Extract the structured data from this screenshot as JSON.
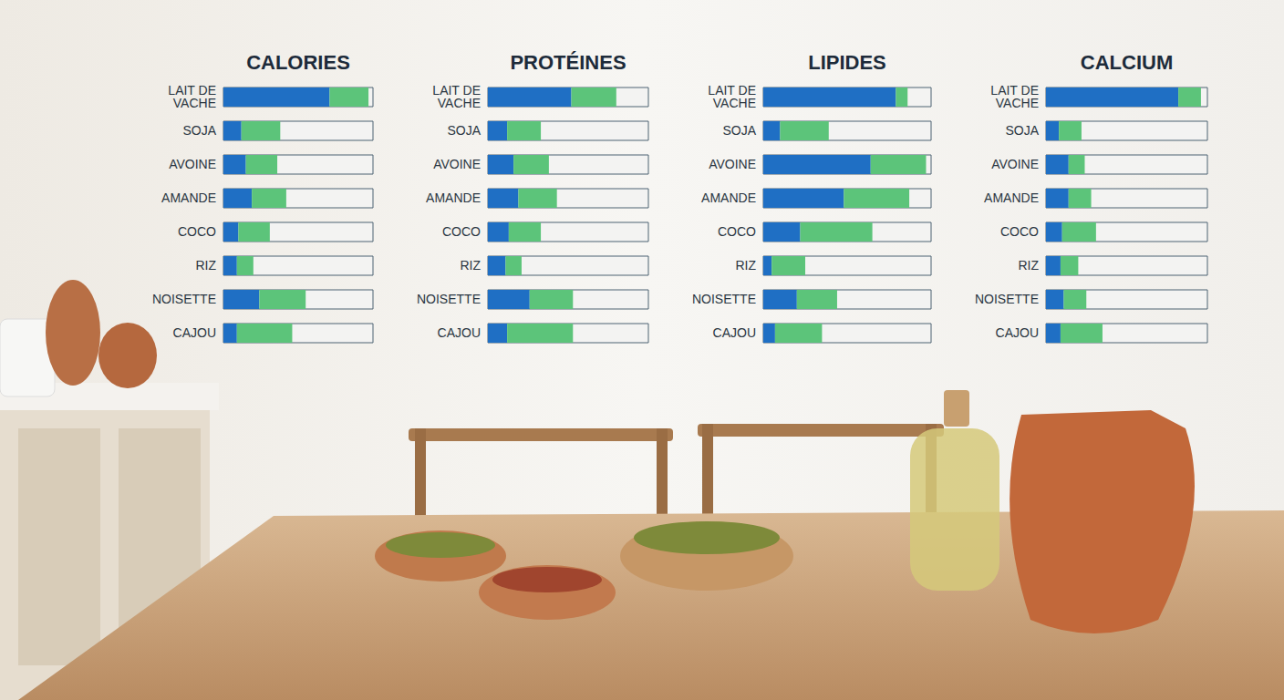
{
  "chart_data": [
    {
      "type": "bar",
      "title": "CALORIES",
      "orientation": "horizontal",
      "stacked": true,
      "tick_labels": "y",
      "xlim": [
        0,
        100
      ],
      "categories": [
        "LAIT DE VACHE",
        "SOJA",
        "AVOINE",
        "AMANDE",
        "COCO",
        "RIZ",
        "NOISETTE",
        "CAJOU"
      ],
      "series": [
        {
          "color": "#1f6fc4",
          "values": [
            71,
            12,
            15,
            19,
            10,
            9,
            24,
            9
          ]
        },
        {
          "color": "#5cc47a",
          "values": [
            26,
            26,
            21,
            23,
            21,
            11,
            31,
            37
          ]
        }
      ]
    },
    {
      "type": "bar",
      "title": "PROTÉINES",
      "orientation": "horizontal",
      "stacked": true,
      "tick_labels": "y",
      "xlim": [
        0,
        100
      ],
      "categories": [
        "LAIT DE VACHE",
        "SOJA",
        "AVOINE",
        "AMANDE",
        "COCO",
        "RIZ",
        "NOISETTE",
        "CAJOU"
      ],
      "series": [
        {
          "color": "#1f6fc4",
          "values": [
            52,
            12,
            16,
            19,
            13,
            11,
            26,
            12
          ]
        },
        {
          "color": "#5cc47a",
          "values": [
            28,
            21,
            22,
            24,
            20,
            10,
            27,
            41
          ]
        }
      ]
    },
    {
      "type": "bar",
      "title": "LIPIDES",
      "orientation": "horizontal",
      "stacked": true,
      "tick_labels": "y",
      "xlim": [
        0,
        100
      ],
      "categories": [
        "LAIT DE VACHE",
        "SOJA",
        "AVOINE",
        "AMANDE",
        "COCO",
        "RIZ",
        "NOISETTE",
        "CAJOU"
      ],
      "series": [
        {
          "color": "#1f6fc4",
          "values": [
            79,
            10,
            64,
            48,
            22,
            5,
            20,
            7
          ]
        },
        {
          "color": "#5cc47a",
          "values": [
            7,
            29,
            33,
            39,
            43,
            20,
            24,
            28
          ]
        }
      ]
    },
    {
      "type": "bar",
      "title": "CALCIUM",
      "orientation": "horizontal",
      "stacked": true,
      "tick_labels": "y",
      "xlim": [
        0,
        100
      ],
      "categories": [
        "LAIT DE VACHE",
        "SOJA",
        "AVOINE",
        "AMANDE",
        "COCO",
        "RIZ",
        "NOISETTE",
        "CAJOU"
      ],
      "series": [
        {
          "color": "#1f6fc4",
          "values": [
            82,
            8,
            14,
            14,
            10,
            9,
            11,
            9
          ]
        },
        {
          "color": "#5cc47a",
          "values": [
            14,
            14,
            10,
            14,
            21,
            11,
            14,
            26
          ]
        }
      ]
    }
  ]
}
